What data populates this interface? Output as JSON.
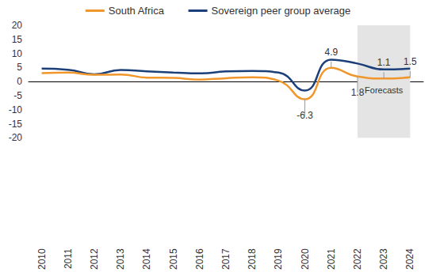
{
  "chart_data": {
    "type": "line",
    "categories": [
      "2010",
      "2011",
      "2012",
      "2013",
      "2014",
      "2015",
      "2016",
      "2017",
      "2018",
      "2019",
      "2020",
      "2021",
      "2022",
      "2023",
      "2024"
    ],
    "series": [
      {
        "name": "South Africa",
        "color": "#f0962a",
        "values": [
          3.0,
          3.2,
          2.4,
          2.5,
          1.4,
          1.3,
          0.7,
          1.2,
          1.5,
          0.3,
          -6.3,
          4.9,
          1.8,
          1.1,
          1.5
        ]
      },
      {
        "name": "Sovereign peer group average",
        "color": "#1b3f78",
        "values": [
          4.6,
          4.2,
          2.6,
          4.1,
          3.6,
          3.2,
          2.9,
          3.6,
          3.8,
          3.2,
          -3.2,
          7.8,
          6.4,
          4.3,
          4.6
        ]
      }
    ],
    "annotations": [
      {
        "category": "2020",
        "value": -6.3,
        "label": "-6.3",
        "position": "below"
      },
      {
        "category": "2021",
        "value": 4.9,
        "label": "4.9",
        "position": "above"
      },
      {
        "category": "2022",
        "value": 1.8,
        "label": "1.8",
        "position": "below"
      },
      {
        "category": "2023",
        "value": 1.1,
        "label": "1.1",
        "position": "above"
      },
      {
        "category": "2024",
        "value": 1.5,
        "label": "1.5",
        "position": "above"
      }
    ],
    "forecast": {
      "from": "2022",
      "to": "2024",
      "label": "Forecasts"
    },
    "ylim": [
      -20,
      20
    ],
    "yticks": [
      -20,
      -15,
      -10,
      -5,
      0,
      5,
      10,
      15,
      20
    ],
    "grid": false,
    "legend": "top"
  }
}
